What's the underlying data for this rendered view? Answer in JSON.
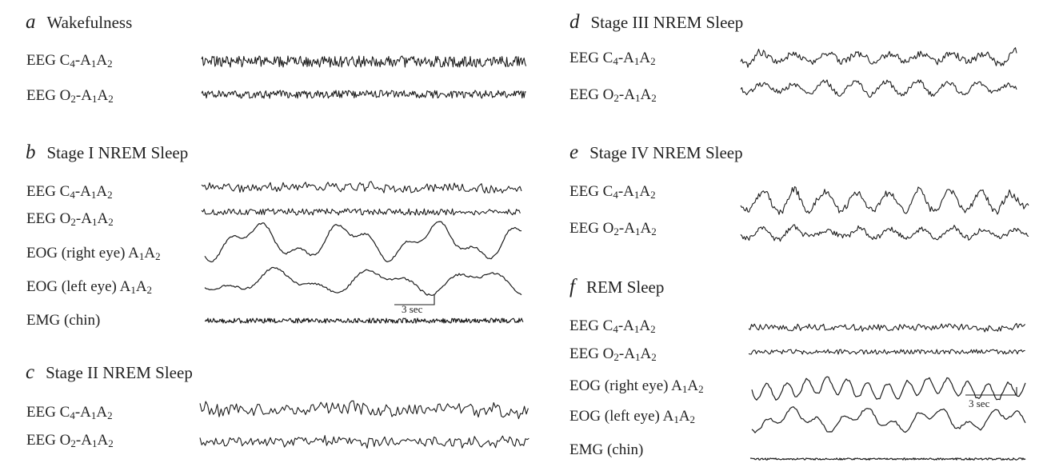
{
  "panels": {
    "a": {
      "letter": "a",
      "title": "Wakefulness",
      "traces": [
        {
          "label": [
            [
              "EEG C",
              "4",
              "-A",
              "1",
              "A",
              "2"
            ]
          ]
        },
        {
          "label": [
            [
              "EEG O",
              "2",
              "-A",
              "1",
              "A",
              "2"
            ]
          ]
        }
      ]
    },
    "b": {
      "letter": "b",
      "title": "Stage I NREM Sleep",
      "traces": [
        {
          "label": [
            [
              "EEG C",
              "4",
              "-A",
              "1",
              "A",
              "2"
            ]
          ]
        },
        {
          "label": [
            [
              "EEG O",
              "2",
              "-A",
              "1",
              "A",
              "2"
            ]
          ]
        },
        {
          "label": [
            [
              "EOG (right eye) A",
              "1",
              "A",
              "2"
            ]
          ]
        },
        {
          "label": [
            [
              "EOG (left eye) A",
              "1",
              "A",
              "2"
            ]
          ]
        },
        {
          "label": [
            [
              "EMG (chin)"
            ]
          ]
        }
      ],
      "scale_bar": "3 sec"
    },
    "c": {
      "letter": "c",
      "title": "Stage II NREM Sleep",
      "traces": [
        {
          "label": [
            [
              "EEG C",
              "4",
              "-A",
              "1",
              "A",
              "2"
            ]
          ]
        },
        {
          "label": [
            [
              "EEG O",
              "2",
              "-A",
              "1",
              "A",
              "2"
            ]
          ]
        }
      ]
    },
    "d": {
      "letter": "d",
      "title": "Stage III NREM Sleep",
      "traces": [
        {
          "label": [
            [
              "EEG C",
              "4",
              "-A",
              "1",
              "A",
              "2"
            ]
          ]
        },
        {
          "label": [
            [
              "EEG O",
              "2",
              "-A",
              "1",
              "A",
              "2"
            ]
          ]
        }
      ]
    },
    "e": {
      "letter": "e",
      "title": "Stage IV NREM Sleep",
      "traces": [
        {
          "label": [
            [
              "EEG C",
              "4",
              "-A",
              "1",
              "A",
              "2"
            ]
          ]
        },
        {
          "label": [
            [
              "EEG O",
              "2",
              "-A",
              "1",
              "A",
              "2"
            ]
          ]
        }
      ]
    },
    "f": {
      "letter": "f",
      "title": "REM Sleep",
      "traces": [
        {
          "label": [
            [
              "EEG C",
              "4",
              "-A",
              "1",
              "A",
              "2"
            ]
          ]
        },
        {
          "label": [
            [
              "EEG O",
              "2",
              "-A",
              "1",
              "A",
              "2"
            ]
          ]
        },
        {
          "label": [
            [
              "EOG (right eye) A",
              "1",
              "A",
              "2"
            ]
          ]
        },
        {
          "label": [
            [
              "EOG (left eye) A",
              "1",
              "A",
              "2"
            ]
          ]
        },
        {
          "label": [
            [
              "EMG (chin)"
            ]
          ]
        }
      ],
      "scale_bar": "3 sec"
    }
  },
  "colors": {
    "trace": "#1c1c1c",
    "background": "#ffffff"
  }
}
